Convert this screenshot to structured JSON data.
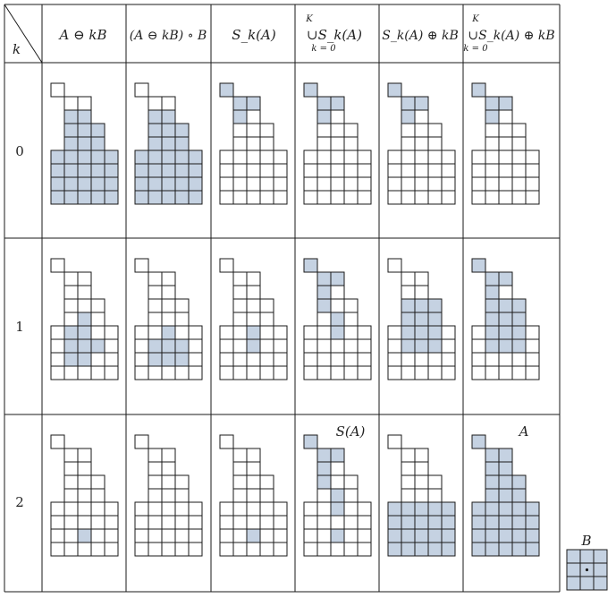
{
  "header": {
    "k_label": "k",
    "columns": [
      {
        "id": "erosion",
        "label": "A ⊖ kB"
      },
      {
        "id": "opening",
        "label": "(A ⊖ kB) ∘ B"
      },
      {
        "id": "skeleton_subset",
        "label": "S_k(A)"
      },
      {
        "id": "union_skeleton",
        "top": "K",
        "mid": "∪S_k(A)",
        "bottom": "k = 0"
      },
      {
        "id": "skeleton_dilated",
        "label": "S_k(A) ⊕ kB"
      },
      {
        "id": "union_reconstruction",
        "top": "K",
        "mid": "∪S_k(A) ⊕ kB",
        "bottom": "k = 0"
      }
    ]
  },
  "rows": [
    {
      "k": "0"
    },
    {
      "k": "1"
    },
    {
      "k": "2"
    }
  ],
  "annotations": {
    "skeleton_label": "S(A)",
    "reconstruction_label": "A",
    "structuring_element_label": "B"
  },
  "colors": {
    "fill": "#c5d2e2",
    "line": "#1a1a1a",
    "bg": "#ffffff"
  },
  "shape_rows": [
    {
      "cols": [
        0
      ]
    },
    {
      "cols": [
        1,
        2
      ]
    },
    {
      "cols": [
        1,
        2
      ]
    },
    {
      "cols": [
        1,
        2,
        3
      ]
    },
    {
      "cols": [
        1,
        2,
        3
      ]
    },
    {
      "cols": [
        0,
        1,
        2,
        3,
        4
      ]
    },
    {
      "cols": [
        0,
        1,
        2,
        3,
        4
      ]
    },
    {
      "cols": [
        0,
        1,
        2,
        3,
        4
      ]
    },
    {
      "cols": [
        0,
        1,
        2,
        3,
        4
      ]
    }
  ],
  "panels": [
    [
      {
        "fill": "rows2-8"
      },
      {
        "fill": "rows2-8"
      },
      {
        "fill": [
          [
            0,
            0
          ],
          [
            1,
            1
          ],
          [
            1,
            2
          ],
          [
            2,
            1
          ]
        ]
      },
      {
        "fill": [
          [
            0,
            0
          ],
          [
            1,
            1
          ],
          [
            1,
            2
          ],
          [
            2,
            1
          ]
        ]
      },
      {
        "fill": [
          [
            0,
            0
          ],
          [
            1,
            1
          ],
          [
            1,
            2
          ],
          [
            2,
            1
          ]
        ]
      },
      {
        "fill": [
          [
            0,
            0
          ],
          [
            1,
            1
          ],
          [
            1,
            2
          ],
          [
            2,
            1
          ]
        ]
      }
    ],
    [
      {
        "fill": [
          [
            4,
            2
          ],
          [
            5,
            1
          ],
          [
            5,
            2
          ],
          [
            6,
            1
          ],
          [
            6,
            2
          ],
          [
            6,
            3
          ],
          [
            7,
            1
          ],
          [
            7,
            2
          ]
        ]
      },
      {
        "fill": [
          [
            5,
            2
          ],
          [
            6,
            1
          ],
          [
            6,
            2
          ],
          [
            6,
            3
          ],
          [
            7,
            1
          ],
          [
            7,
            2
          ],
          [
            7,
            3
          ]
        ]
      },
      {
        "fill": [
          [
            5,
            2
          ],
          [
            6,
            2
          ]
        ]
      },
      {
        "fill": [
          [
            0,
            0
          ],
          [
            1,
            1
          ],
          [
            1,
            2
          ],
          [
            2,
            1
          ],
          [
            3,
            1
          ],
          [
            4,
            2
          ],
          [
            5,
            2
          ]
        ]
      },
      {
        "fill": [
          [
            3,
            1
          ],
          [
            3,
            2
          ],
          [
            3,
            3
          ],
          [
            4,
            1
          ],
          [
            4,
            2
          ],
          [
            4,
            3
          ],
          [
            5,
            1
          ],
          [
            5,
            2
          ],
          [
            5,
            3
          ],
          [
            6,
            1
          ],
          [
            6,
            2
          ],
          [
            6,
            3
          ]
        ]
      },
      {
        "fill": [
          [
            0,
            0
          ],
          [
            1,
            1
          ],
          [
            1,
            2
          ],
          [
            2,
            1
          ],
          [
            3,
            1
          ],
          [
            3,
            2
          ],
          [
            3,
            3
          ],
          [
            4,
            1
          ],
          [
            4,
            2
          ],
          [
            4,
            3
          ],
          [
            5,
            1
          ],
          [
            5,
            2
          ],
          [
            5,
            3
          ],
          [
            6,
            1
          ],
          [
            6,
            2
          ],
          [
            6,
            3
          ]
        ]
      }
    ],
    [
      {
        "fill": [
          [
            7,
            2
          ]
        ]
      },
      {
        "fill": []
      },
      {
        "fill": [
          [
            7,
            2
          ]
        ]
      },
      {
        "fill": [
          [
            0,
            0
          ],
          [
            1,
            1
          ],
          [
            1,
            2
          ],
          [
            2,
            1
          ],
          [
            3,
            1
          ],
          [
            4,
            2
          ],
          [
            5,
            2
          ],
          [
            7,
            2
          ]
        ]
      },
      {
        "fill": "rows5-8"
      },
      {
        "fill": "all"
      }
    ]
  ],
  "structuring_element": {
    "size": 3,
    "origin": [
      1,
      1
    ]
  }
}
